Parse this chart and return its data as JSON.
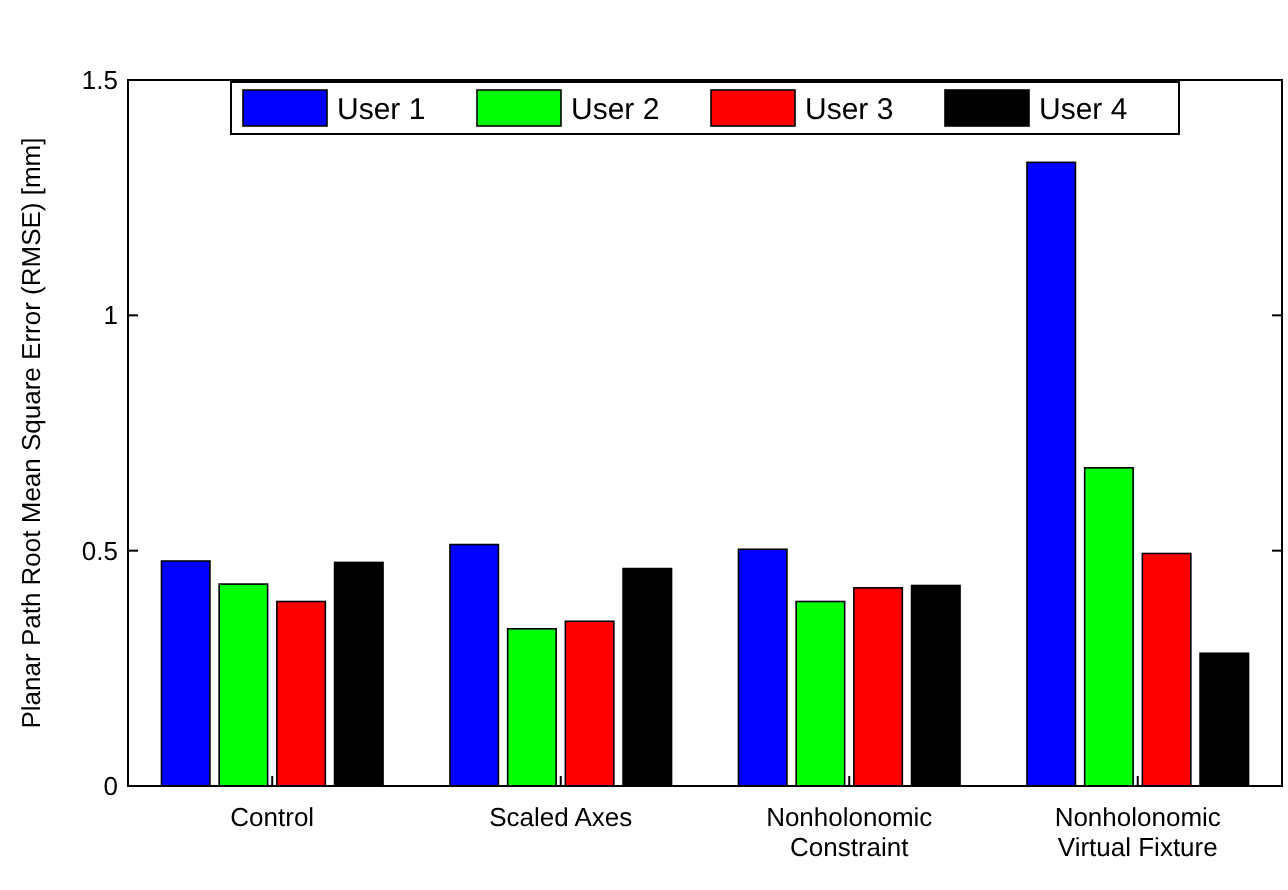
{
  "chart_data": {
    "type": "bar",
    "ylabel": "Planar Path Root Mean Square Error (RMSE) [mm]",
    "categories": [
      "Control",
      "Scaled Axes",
      "Nonholonomic\nConstraint",
      "Nonholonomic\nVirtual Fixture"
    ],
    "series": [
      {
        "name": "User 1",
        "color": "#0000ff",
        "values": [
          0.478,
          0.513,
          0.503,
          1.325
        ]
      },
      {
        "name": "User 2",
        "color": "#00ff00",
        "values": [
          0.429,
          0.334,
          0.392,
          0.676
        ]
      },
      {
        "name": "User 3",
        "color": "#ff0000",
        "values": [
          0.392,
          0.35,
          0.421,
          0.494
        ]
      },
      {
        "name": "User 4",
        "color": "#000000",
        "values": [
          0.475,
          0.462,
          0.426,
          0.282
        ]
      }
    ],
    "ylim": [
      0,
      1.5
    ],
    "yticks": [
      0,
      0.5,
      1,
      1.5
    ],
    "grid": false,
    "legend": "top"
  }
}
